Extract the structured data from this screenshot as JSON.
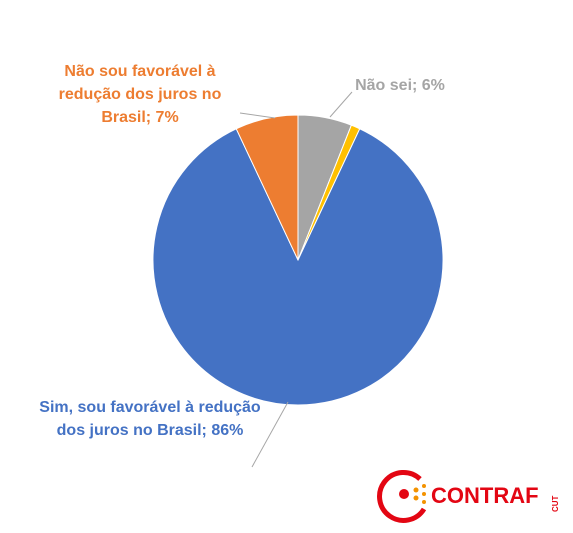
{
  "chart_data": {
    "type": "pie",
    "values": [
      6,
      1,
      86,
      7
    ],
    "value_labels": [
      "Não sei; 6%",
      null,
      "Sim, sou favorável à redução dos juros no Brasil; 86%",
      "Não sou favorável à redução dos juros no Brasil; 7%"
    ],
    "colors": [
      "#a5a5a5",
      "#ffc000",
      "#4472c4",
      "#ed7d31"
    ],
    "logo": {
      "name": "CONTRAF",
      "sub": "CUT"
    }
  }
}
